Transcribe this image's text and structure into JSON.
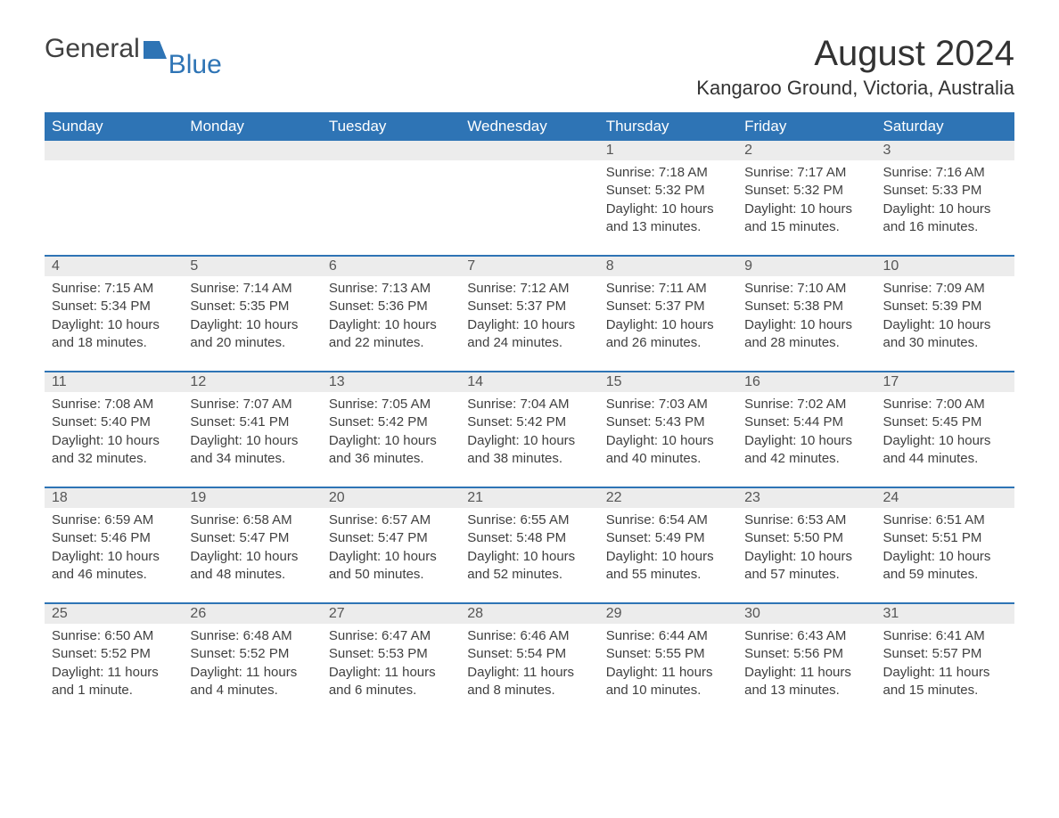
{
  "logo": {
    "text1": "General",
    "text2": "Blue",
    "shape_color": "#2e74b5"
  },
  "title": "August 2024",
  "subtitle": "Kangaroo Ground, Victoria, Australia",
  "colors": {
    "header_bg": "#2e74b5",
    "header_fg": "#ffffff",
    "daynum_bg": "#ececec",
    "text": "#404040",
    "rule": "#2e74b5",
    "background": "#ffffff"
  },
  "day_headers": [
    "Sunday",
    "Monday",
    "Tuesday",
    "Wednesday",
    "Thursday",
    "Friday",
    "Saturday"
  ],
  "weeks": [
    [
      {
        "day": "",
        "sunrise": "",
        "sunset": "",
        "daylight": ""
      },
      {
        "day": "",
        "sunrise": "",
        "sunset": "",
        "daylight": ""
      },
      {
        "day": "",
        "sunrise": "",
        "sunset": "",
        "daylight": ""
      },
      {
        "day": "",
        "sunrise": "",
        "sunset": "",
        "daylight": ""
      },
      {
        "day": "1",
        "sunrise": "Sunrise: 7:18 AM",
        "sunset": "Sunset: 5:32 PM",
        "daylight": "Daylight: 10 hours and 13 minutes."
      },
      {
        "day": "2",
        "sunrise": "Sunrise: 7:17 AM",
        "sunset": "Sunset: 5:32 PM",
        "daylight": "Daylight: 10 hours and 15 minutes."
      },
      {
        "day": "3",
        "sunrise": "Sunrise: 7:16 AM",
        "sunset": "Sunset: 5:33 PM",
        "daylight": "Daylight: 10 hours and 16 minutes."
      }
    ],
    [
      {
        "day": "4",
        "sunrise": "Sunrise: 7:15 AM",
        "sunset": "Sunset: 5:34 PM",
        "daylight": "Daylight: 10 hours and 18 minutes."
      },
      {
        "day": "5",
        "sunrise": "Sunrise: 7:14 AM",
        "sunset": "Sunset: 5:35 PM",
        "daylight": "Daylight: 10 hours and 20 minutes."
      },
      {
        "day": "6",
        "sunrise": "Sunrise: 7:13 AM",
        "sunset": "Sunset: 5:36 PM",
        "daylight": "Daylight: 10 hours and 22 minutes."
      },
      {
        "day": "7",
        "sunrise": "Sunrise: 7:12 AM",
        "sunset": "Sunset: 5:37 PM",
        "daylight": "Daylight: 10 hours and 24 minutes."
      },
      {
        "day": "8",
        "sunrise": "Sunrise: 7:11 AM",
        "sunset": "Sunset: 5:37 PM",
        "daylight": "Daylight: 10 hours and 26 minutes."
      },
      {
        "day": "9",
        "sunrise": "Sunrise: 7:10 AM",
        "sunset": "Sunset: 5:38 PM",
        "daylight": "Daylight: 10 hours and 28 minutes."
      },
      {
        "day": "10",
        "sunrise": "Sunrise: 7:09 AM",
        "sunset": "Sunset: 5:39 PM",
        "daylight": "Daylight: 10 hours and 30 minutes."
      }
    ],
    [
      {
        "day": "11",
        "sunrise": "Sunrise: 7:08 AM",
        "sunset": "Sunset: 5:40 PM",
        "daylight": "Daylight: 10 hours and 32 minutes."
      },
      {
        "day": "12",
        "sunrise": "Sunrise: 7:07 AM",
        "sunset": "Sunset: 5:41 PM",
        "daylight": "Daylight: 10 hours and 34 minutes."
      },
      {
        "day": "13",
        "sunrise": "Sunrise: 7:05 AM",
        "sunset": "Sunset: 5:42 PM",
        "daylight": "Daylight: 10 hours and 36 minutes."
      },
      {
        "day": "14",
        "sunrise": "Sunrise: 7:04 AM",
        "sunset": "Sunset: 5:42 PM",
        "daylight": "Daylight: 10 hours and 38 minutes."
      },
      {
        "day": "15",
        "sunrise": "Sunrise: 7:03 AM",
        "sunset": "Sunset: 5:43 PM",
        "daylight": "Daylight: 10 hours and 40 minutes."
      },
      {
        "day": "16",
        "sunrise": "Sunrise: 7:02 AM",
        "sunset": "Sunset: 5:44 PM",
        "daylight": "Daylight: 10 hours and 42 minutes."
      },
      {
        "day": "17",
        "sunrise": "Sunrise: 7:00 AM",
        "sunset": "Sunset: 5:45 PM",
        "daylight": "Daylight: 10 hours and 44 minutes."
      }
    ],
    [
      {
        "day": "18",
        "sunrise": "Sunrise: 6:59 AM",
        "sunset": "Sunset: 5:46 PM",
        "daylight": "Daylight: 10 hours and 46 minutes."
      },
      {
        "day": "19",
        "sunrise": "Sunrise: 6:58 AM",
        "sunset": "Sunset: 5:47 PM",
        "daylight": "Daylight: 10 hours and 48 minutes."
      },
      {
        "day": "20",
        "sunrise": "Sunrise: 6:57 AM",
        "sunset": "Sunset: 5:47 PM",
        "daylight": "Daylight: 10 hours and 50 minutes."
      },
      {
        "day": "21",
        "sunrise": "Sunrise: 6:55 AM",
        "sunset": "Sunset: 5:48 PM",
        "daylight": "Daylight: 10 hours and 52 minutes."
      },
      {
        "day": "22",
        "sunrise": "Sunrise: 6:54 AM",
        "sunset": "Sunset: 5:49 PM",
        "daylight": "Daylight: 10 hours and 55 minutes."
      },
      {
        "day": "23",
        "sunrise": "Sunrise: 6:53 AM",
        "sunset": "Sunset: 5:50 PM",
        "daylight": "Daylight: 10 hours and 57 minutes."
      },
      {
        "day": "24",
        "sunrise": "Sunrise: 6:51 AM",
        "sunset": "Sunset: 5:51 PM",
        "daylight": "Daylight: 10 hours and 59 minutes."
      }
    ],
    [
      {
        "day": "25",
        "sunrise": "Sunrise: 6:50 AM",
        "sunset": "Sunset: 5:52 PM",
        "daylight": "Daylight: 11 hours and 1 minute."
      },
      {
        "day": "26",
        "sunrise": "Sunrise: 6:48 AM",
        "sunset": "Sunset: 5:52 PM",
        "daylight": "Daylight: 11 hours and 4 minutes."
      },
      {
        "day": "27",
        "sunrise": "Sunrise: 6:47 AM",
        "sunset": "Sunset: 5:53 PM",
        "daylight": "Daylight: 11 hours and 6 minutes."
      },
      {
        "day": "28",
        "sunrise": "Sunrise: 6:46 AM",
        "sunset": "Sunset: 5:54 PM",
        "daylight": "Daylight: 11 hours and 8 minutes."
      },
      {
        "day": "29",
        "sunrise": "Sunrise: 6:44 AM",
        "sunset": "Sunset: 5:55 PM",
        "daylight": "Daylight: 11 hours and 10 minutes."
      },
      {
        "day": "30",
        "sunrise": "Sunrise: 6:43 AM",
        "sunset": "Sunset: 5:56 PM",
        "daylight": "Daylight: 11 hours and 13 minutes."
      },
      {
        "day": "31",
        "sunrise": "Sunrise: 6:41 AM",
        "sunset": "Sunset: 5:57 PM",
        "daylight": "Daylight: 11 hours and 15 minutes."
      }
    ]
  ]
}
